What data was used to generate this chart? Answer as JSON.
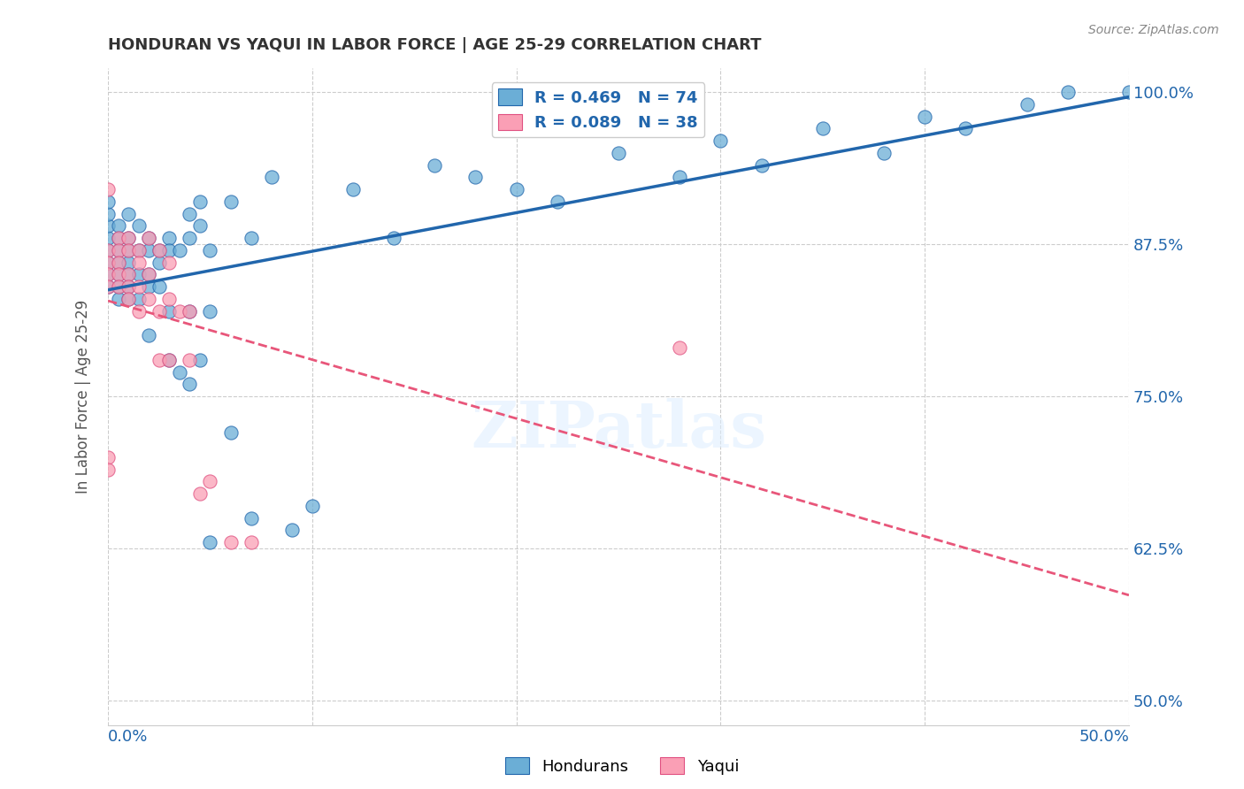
{
  "title": "HONDURAN VS YAQUI IN LABOR FORCE | AGE 25-29 CORRELATION CHART",
  "source": "Source: ZipAtlas.com",
  "ylabel": "In Labor Force | Age 25-29",
  "ytick_labels": [
    "50.0%",
    "62.5%",
    "75.0%",
    "87.5%",
    "100.0%"
  ],
  "ytick_values": [
    0.5,
    0.625,
    0.75,
    0.875,
    1.0
  ],
  "xlim": [
    0.0,
    0.5
  ],
  "ylim": [
    0.48,
    1.02
  ],
  "legend_blue_label": "R = 0.469   N = 74",
  "legend_pink_label": "R = 0.089   N = 38",
  "legend_bottom_blue": "Hondurans",
  "legend_bottom_pink": "Yaqui",
  "blue_color": "#6baed6",
  "pink_color": "#fa9fb5",
  "blue_line_color": "#2166ac",
  "pink_line_color": "#e8567a",
  "pink_edge_color": "#e05080",
  "label_color": "#2166ac",
  "watermark_text": "ZIPatlas",
  "blue_scatter_x": [
    0.0,
    0.0,
    0.0,
    0.0,
    0.0,
    0.0,
    0.0,
    0.0,
    0.005,
    0.005,
    0.005,
    0.005,
    0.005,
    0.005,
    0.005,
    0.01,
    0.01,
    0.01,
    0.01,
    0.01,
    0.01,
    0.01,
    0.015,
    0.015,
    0.015,
    0.015,
    0.02,
    0.02,
    0.02,
    0.02,
    0.02,
    0.025,
    0.025,
    0.025,
    0.03,
    0.03,
    0.03,
    0.03,
    0.035,
    0.035,
    0.04,
    0.04,
    0.04,
    0.04,
    0.045,
    0.045,
    0.045,
    0.05,
    0.05,
    0.05,
    0.06,
    0.06,
    0.07,
    0.07,
    0.08,
    0.09,
    0.1,
    0.12,
    0.14,
    0.16,
    0.18,
    0.2,
    0.22,
    0.25,
    0.28,
    0.3,
    0.32,
    0.35,
    0.38,
    0.4,
    0.42,
    0.45,
    0.47,
    0.5
  ],
  "blue_scatter_y": [
    0.87,
    0.88,
    0.89,
    0.9,
    0.91,
    0.85,
    0.86,
    0.84,
    0.87,
    0.86,
    0.85,
    0.88,
    0.89,
    0.84,
    0.83,
    0.88,
    0.87,
    0.86,
    0.85,
    0.84,
    0.9,
    0.83,
    0.89,
    0.87,
    0.85,
    0.83,
    0.88,
    0.87,
    0.85,
    0.84,
    0.8,
    0.87,
    0.86,
    0.84,
    0.88,
    0.87,
    0.82,
    0.78,
    0.87,
    0.77,
    0.9,
    0.88,
    0.82,
    0.76,
    0.91,
    0.89,
    0.78,
    0.87,
    0.82,
    0.63,
    0.91,
    0.72,
    0.88,
    0.65,
    0.93,
    0.64,
    0.66,
    0.92,
    0.88,
    0.94,
    0.93,
    0.92,
    0.91,
    0.95,
    0.93,
    0.96,
    0.94,
    0.97,
    0.95,
    0.98,
    0.97,
    0.99,
    1.0,
    1.0
  ],
  "pink_scatter_x": [
    0.0,
    0.0,
    0.0,
    0.0,
    0.0,
    0.0,
    0.0,
    0.005,
    0.005,
    0.005,
    0.005,
    0.005,
    0.01,
    0.01,
    0.01,
    0.01,
    0.01,
    0.015,
    0.015,
    0.015,
    0.015,
    0.02,
    0.02,
    0.02,
    0.025,
    0.025,
    0.025,
    0.03,
    0.03,
    0.03,
    0.035,
    0.04,
    0.04,
    0.045,
    0.05,
    0.06,
    0.07,
    0.28
  ],
  "pink_scatter_y": [
    0.87,
    0.86,
    0.85,
    0.84,
    0.92,
    0.7,
    0.69,
    0.88,
    0.87,
    0.86,
    0.85,
    0.84,
    0.88,
    0.87,
    0.85,
    0.84,
    0.83,
    0.87,
    0.86,
    0.84,
    0.82,
    0.88,
    0.85,
    0.83,
    0.87,
    0.82,
    0.78,
    0.86,
    0.83,
    0.78,
    0.82,
    0.82,
    0.78,
    0.67,
    0.68,
    0.63,
    0.63,
    0.79
  ]
}
